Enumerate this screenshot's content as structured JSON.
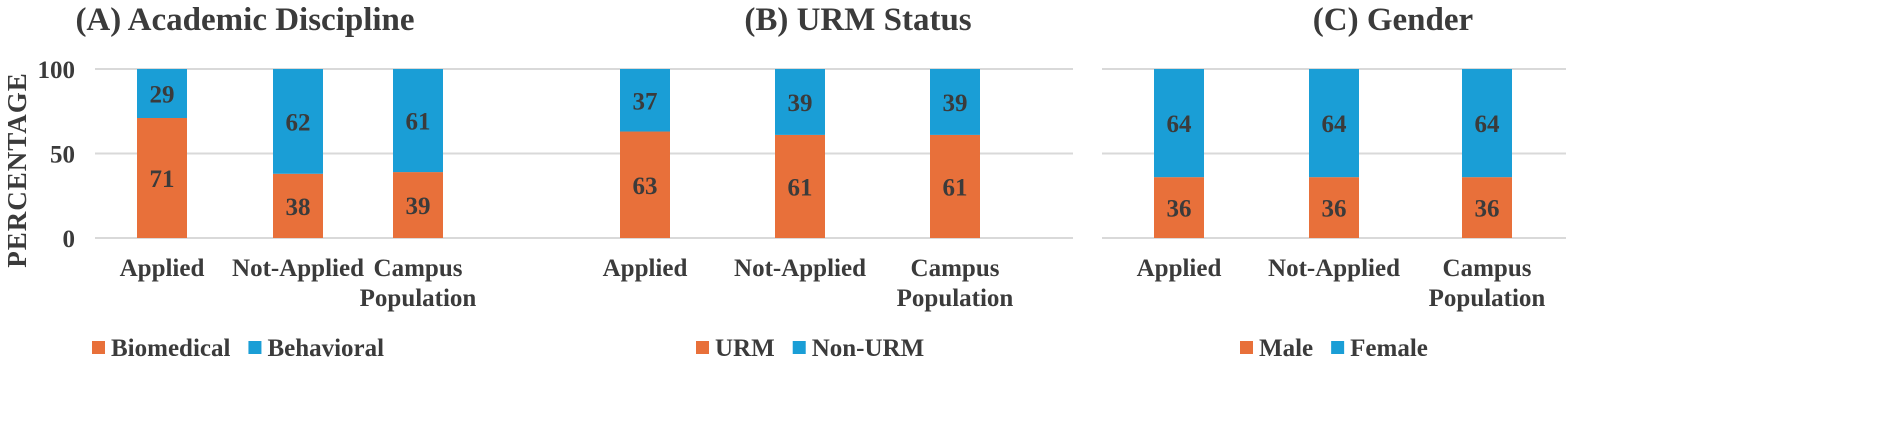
{
  "y_axis_label": "PERCENTAGE",
  "colors": {
    "bottom": "#E8703A",
    "top": "#1A9ED6",
    "grid": "#d9d9d9",
    "text": "#3b3b3b"
  },
  "chart_data": [
    {
      "type": "bar",
      "stacked": true,
      "title": "(A) Academic Discipline",
      "categories": [
        "Applied",
        "Not-Applied",
        "Campus Population"
      ],
      "category_lines": [
        [
          "Applied"
        ],
        [
          "Not-Applied"
        ],
        [
          "Campus",
          "Population"
        ]
      ],
      "ylim": [
        0,
        100
      ],
      "yticks": [
        0,
        50,
        100
      ],
      "ylabel": "PERCENTAGE",
      "grid": true,
      "legend_position": "bottom",
      "series": [
        {
          "name": "Biomedical",
          "values": [
            71,
            38,
            39
          ],
          "color": "#E8703A"
        },
        {
          "name": "Behavioral",
          "values": [
            29,
            62,
            61
          ],
          "color": "#1A9ED6"
        }
      ]
    },
    {
      "type": "bar",
      "stacked": true,
      "title": "(B) URM Status",
      "categories": [
        "Applied",
        "Not-Applied",
        "Campus Population"
      ],
      "category_lines": [
        [
          "Applied"
        ],
        [
          "Not-Applied"
        ],
        [
          "Campus",
          "Population"
        ]
      ],
      "ylim": [
        0,
        100
      ],
      "yticks": [
        0,
        50,
        100
      ],
      "grid": true,
      "legend_position": "bottom",
      "series": [
        {
          "name": "URM",
          "values": [
            63,
            61,
            61
          ],
          "color": "#E8703A"
        },
        {
          "name": "Non-URM",
          "values": [
            37,
            39,
            39
          ],
          "color": "#1A9ED6"
        }
      ]
    },
    {
      "type": "bar",
      "stacked": true,
      "title": "(C) Gender",
      "categories": [
        "Applied",
        "Not-Applied",
        "Campus Population"
      ],
      "category_lines": [
        [
          "Applied"
        ],
        [
          "Not-Applied"
        ],
        [
          "Campus",
          "Population"
        ]
      ],
      "ylim": [
        0,
        100
      ],
      "yticks": [
        0,
        50,
        100
      ],
      "grid": true,
      "legend_position": "bottom",
      "series": [
        {
          "name": "Male",
          "values": [
            36,
            36,
            36
          ],
          "color": "#E8703A"
        },
        {
          "name": "Female",
          "values": [
            64,
            64,
            64
          ],
          "color": "#1A9ED6"
        }
      ]
    }
  ]
}
